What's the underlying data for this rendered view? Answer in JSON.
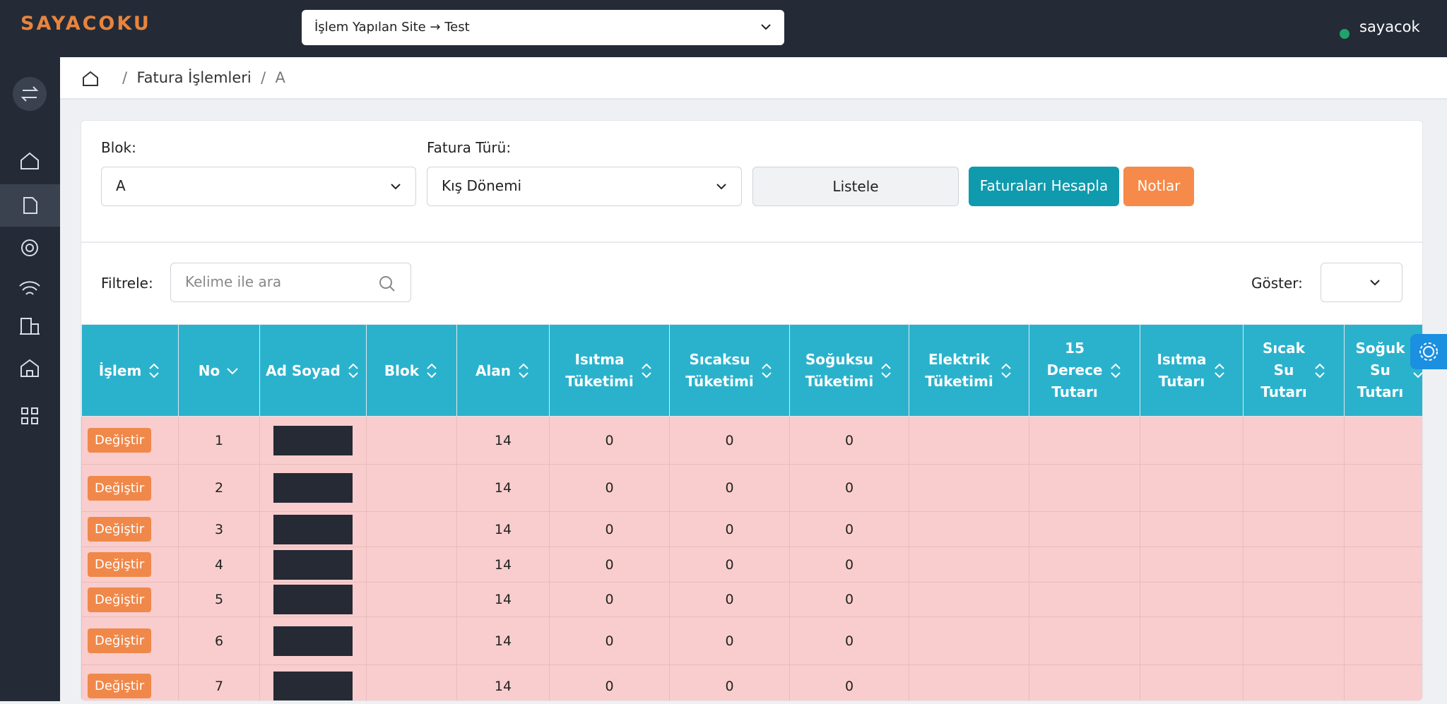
{
  "header": {
    "logo": "SAYACOKU",
    "site_select": "İşlem Yapılan Site → Test",
    "user": "sayacok"
  },
  "breadcrumb": [
    "Fatura İşlemleri",
    "A"
  ],
  "form": {
    "blok_label": "Blok:",
    "blok_value": "A",
    "fatura_label": "Fatura Türü:",
    "fatura_value": "Kış Dönemi",
    "listele": "Listele",
    "hesapla": "Faturaları Hesapla",
    "notlar": "Notlar"
  },
  "filter": {
    "label": "Filtrele:",
    "placeholder": "Kelime ile ara",
    "show_label": "Göster:"
  },
  "table": {
    "columns": [
      "İşlem",
      "No",
      "Ad Soyad",
      "Blok",
      "Alan",
      "Isıtma\nTüketimi",
      "Sıcaksu\nTüketimi",
      "Soğuksu\nTüketimi",
      "Elektrik\nTüketimi",
      "15\nDerece\nTutarı",
      "Isıtma\nTutarı",
      "Sıcak\nSu\nTutarı",
      "Soğuk\nSu\nTutarı"
    ],
    "rows": [
      [
        "Değiştir",
        "1",
        "14",
        "0",
        "0",
        "0"
      ],
      [
        "Değiştir",
        "2",
        "14",
        "0",
        "0",
        "0"
      ],
      [
        "Değiştir",
        "3",
        "14",
        "0",
        "0",
        "0"
      ],
      [
        "Değiştir",
        "4",
        "14",
        "0",
        "0",
        "0"
      ],
      [
        "Değiştir",
        "5",
        "14",
        "0",
        "0",
        "0"
      ],
      [
        "Değiştir",
        "6",
        "14",
        "0",
        "0",
        "0"
      ],
      [
        "Değiştir",
        "7",
        "14",
        "0",
        "0",
        "0"
      ]
    ]
  }
}
